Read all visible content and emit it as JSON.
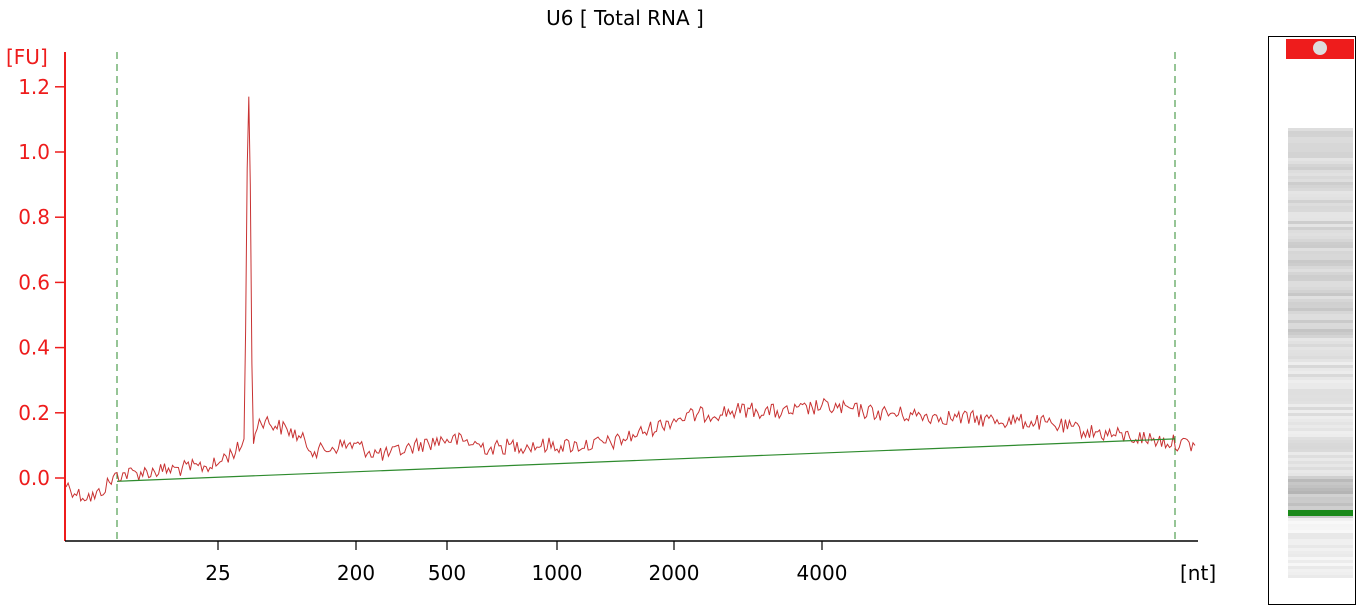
{
  "chart_data": {
    "type": "line",
    "title": "U6  [ Total RNA ]",
    "ylabel": "[FU]",
    "xlabel": "[nt]",
    "x_axis_type": "size ladder (non-linear)",
    "yticks": [
      {
        "value": 0.0,
        "label": "0.0"
      },
      {
        "value": 0.2,
        "label": "0.2"
      },
      {
        "value": 0.4,
        "label": "0.4"
      },
      {
        "value": 0.6,
        "label": "0.6"
      },
      {
        "value": 0.8,
        "label": "0.8"
      },
      {
        "value": 1.0,
        "label": "1.0"
      },
      {
        "value": 1.2,
        "label": "1.2"
      }
    ],
    "xticks": [
      "25",
      "200",
      "500",
      "1000",
      "2000",
      "4000"
    ],
    "ylim": [
      -0.2,
      1.3
    ],
    "grid": false,
    "series": [
      {
        "color": "#c83232",
        "points": [
          [
            6,
            -0.02
          ],
          [
            10,
            -0.05
          ],
          [
            15,
            -0.06
          ],
          [
            19,
            -0.02
          ],
          [
            22,
            0.01
          ],
          [
            25,
            0.04
          ],
          [
            30,
            0.06
          ],
          [
            38,
            0.07
          ],
          [
            45,
            0.08
          ],
          [
            52,
            0.09
          ],
          [
            58,
            0.12
          ],
          [
            60,
            0.45
          ],
          [
            62,
            0.95
          ],
          [
            64,
            1.17
          ],
          [
            66,
            0.9
          ],
          [
            68,
            0.35
          ],
          [
            70,
            0.1
          ],
          [
            72,
            0.15
          ],
          [
            80,
            0.18
          ],
          [
            100,
            0.16
          ],
          [
            120,
            0.14
          ],
          [
            150,
            0.08
          ],
          [
            180,
            0.1
          ],
          [
            200,
            0.1
          ],
          [
            250,
            0.08
          ],
          [
            300,
            0.07
          ],
          [
            400,
            0.1
          ],
          [
            500,
            0.12
          ],
          [
            600,
            0.11
          ],
          [
            700,
            0.09
          ],
          [
            800,
            0.1
          ],
          [
            1000,
            0.1
          ],
          [
            1200,
            0.1
          ],
          [
            1500,
            0.11
          ],
          [
            1800,
            0.15
          ],
          [
            2000,
            0.18
          ],
          [
            2200,
            0.19
          ],
          [
            2600,
            0.2
          ],
          [
            3000,
            0.21
          ],
          [
            3500,
            0.2
          ],
          [
            4000,
            0.22
          ],
          [
            4500,
            0.21
          ],
          [
            5000,
            0.2
          ],
          [
            6000,
            0.19
          ],
          [
            7000,
            0.18
          ],
          [
            8000,
            0.17
          ],
          [
            9000,
            0.14
          ],
          [
            10000,
            0.12
          ],
          [
            11000,
            0.1
          ]
        ]
      },
      {
        "color": "#2e8b2e",
        "points": [
          [
            22,
            -0.01
          ],
          [
            10500,
            0.12
          ]
        ]
      }
    ],
    "markers": {
      "color": "#2e8b2e",
      "style": "dashed",
      "positions": [
        22,
        10500
      ]
    }
  },
  "gel_lane": {
    "top_band_color": "#ee1c1c",
    "marker_band_color": "#1b8a1b"
  }
}
